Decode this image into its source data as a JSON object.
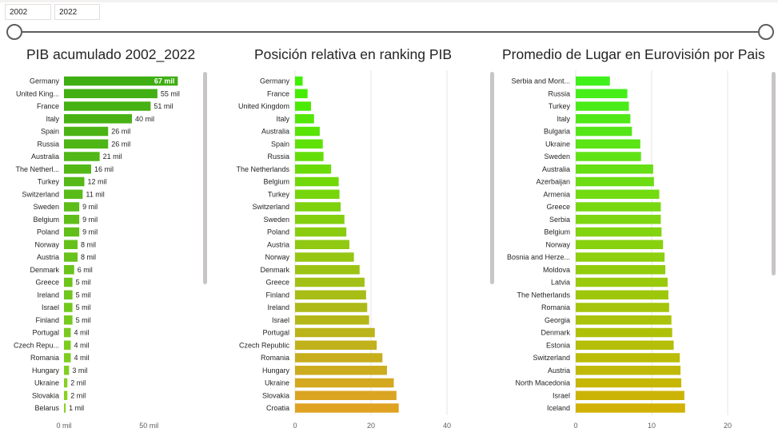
{
  "slicer": {
    "start": "2002",
    "end": "2022"
  },
  "colors": {
    "track": "#605e5c",
    "axis_text": "#605e5c",
    "label_text": "#252423"
  },
  "chart_data": [
    {
      "id": "pib",
      "type": "bar",
      "orientation": "horizontal",
      "title": "PIB acumulado 2002_2022",
      "categories": [
        "Germany",
        "United Kingdom",
        "France",
        "Italy",
        "Spain",
        "Russia",
        "Australia",
        "The Netherlands",
        "Turkey",
        "Switzerland",
        "Sweden",
        "Belgium",
        "Poland",
        "Norway",
        "Austria",
        "Denmark",
        "Greece",
        "Ireland",
        "Israel",
        "Finland",
        "Portugal",
        "Czech Republic",
        "Romania",
        "Hungary",
        "Ukraine",
        "Slovakia",
        "Belarus"
      ],
      "category_labels": [
        "Germany",
        "United King...",
        "France",
        "Italy",
        "Spain",
        "Russia",
        "Australia",
        "The Netherl...",
        "Turkey",
        "Switzerland",
        "Sweden",
        "Belgium",
        "Poland",
        "Norway",
        "Austria",
        "Denmark",
        "Greece",
        "Ireland",
        "Israel",
        "Finland",
        "Portugal",
        "Czech Repu...",
        "Romania",
        "Hungary",
        "Ukraine",
        "Slovakia",
        "Belarus"
      ],
      "values": [
        67,
        55,
        51,
        40,
        26,
        26,
        21,
        16,
        12,
        11,
        9,
        9,
        9,
        8,
        8,
        6,
        5,
        5,
        5,
        5,
        4,
        4,
        4,
        3,
        2,
        2,
        1
      ],
      "data_labels": [
        "67 mil",
        "55 mil",
        "51 mil",
        "40 mil",
        "26 mil",
        "26 mil",
        "21 mil",
        "16 mil",
        "12 mil",
        "11 mil",
        "9 mil",
        "9 mil",
        "9 mil",
        "8 mil",
        "8 mil",
        "6 mil",
        "5 mil",
        "5 mil",
        "5 mil",
        "5 mil",
        "4 mil",
        "4 mil",
        "4 mil",
        "3 mil",
        "2 mil",
        "2 mil",
        "1 mil"
      ],
      "xlim": [
        0,
        80
      ],
      "xticks": [
        0,
        50
      ],
      "xtick_labels": [
        "0 mil",
        "50 mil"
      ],
      "grid": false,
      "color_from": "#3fae12",
      "color_to": "#8ad322"
    },
    {
      "id": "ranking",
      "type": "bar",
      "orientation": "horizontal",
      "title": "Posición relativa en ranking PIB",
      "categories": [
        "Germany",
        "France",
        "United Kingdom",
        "Italy",
        "Australia",
        "Spain",
        "Russia",
        "The Netherlands",
        "Belgium",
        "Turkey",
        "Switzerland",
        "Sweden",
        "Poland",
        "Austria",
        "Norway",
        "Denmark",
        "Greece",
        "Finland",
        "Ireland",
        "Israel",
        "Portugal",
        "Czech Republic",
        "Romania",
        "Hungary",
        "Ukraine",
        "Slovakia",
        "Croatia"
      ],
      "category_labels": [
        "Germany",
        "France",
        "United Kingdom",
        "Italy",
        "Australia",
        "Spain",
        "Russia",
        "The Netherlands",
        "Belgium",
        "Turkey",
        "Switzerland",
        "Sweden",
        "Poland",
        "Austria",
        "Norway",
        "Denmark",
        "Greece",
        "Finland",
        "Ireland",
        "Israel",
        "Portugal",
        "Czech Republic",
        "Romania",
        "Hungary",
        "Ukraine",
        "Slovakia",
        "Croatia"
      ],
      "values": [
        2,
        3.3,
        4.2,
        5,
        6.5,
        7.3,
        7.5,
        9.5,
        11.5,
        11.7,
        12,
        13,
        13.5,
        14.3,
        15.5,
        17,
        18.3,
        18.7,
        19,
        19.5,
        21,
        21.5,
        23,
        24.2,
        26,
        26.7,
        27.3
      ],
      "xlim": [
        0,
        40
      ],
      "xticks": [
        0,
        20,
        40
      ],
      "xtick_labels": [
        "0",
        "20",
        "40"
      ],
      "grid": true,
      "color_from": "#3ff000",
      "color_to": "#e0a222"
    },
    {
      "id": "eurovision",
      "type": "bar",
      "orientation": "horizontal",
      "title": "Promedio de Lugar en Eurovisión por Pais",
      "categories": [
        "Serbia and Montenegro",
        "Russia",
        "Turkey",
        "Italy",
        "Bulgaria",
        "Ukraine",
        "Sweden",
        "Australia",
        "Azerbaijan",
        "Armenia",
        "Greece",
        "Serbia",
        "Belgium",
        "Norway",
        "Bosnia and Herzegovina",
        "Moldova",
        "Latvia",
        "The Netherlands",
        "Romania",
        "Georgia",
        "Denmark",
        "Estonia",
        "Switzerland",
        "Austria",
        "North Macedonia",
        "Israel",
        "Iceland"
      ],
      "category_labels": [
        "Serbia and Mont...",
        "Russia",
        "Turkey",
        "Italy",
        "Bulgaria",
        "Ukraine",
        "Sweden",
        "Australia",
        "Azerbaijan",
        "Armenia",
        "Greece",
        "Serbia",
        "Belgium",
        "Norway",
        "Bosnia and Herze...",
        "Moldova",
        "Latvia",
        "The Netherlands",
        "Romania",
        "Georgia",
        "Denmark",
        "Estonia",
        "Switzerland",
        "Austria",
        "North Macedonia",
        "Israel",
        "Iceland"
      ],
      "values": [
        4.5,
        6.8,
        7,
        7.2,
        7.4,
        8.5,
        8.6,
        10.2,
        10.3,
        11,
        11.2,
        11.2,
        11.3,
        11.5,
        11.7,
        11.8,
        12.1,
        12.2,
        12.3,
        12.6,
        12.7,
        12.9,
        13.7,
        13.8,
        13.9,
        14.3,
        14.4
      ],
      "xlim": [
        0,
        24
      ],
      "xticks": [
        0,
        10,
        20
      ],
      "xtick_labels": [
        "0",
        "10",
        "20"
      ],
      "grid": true,
      "color_from": "#3ff01a",
      "color_to": "#d1b204"
    }
  ]
}
